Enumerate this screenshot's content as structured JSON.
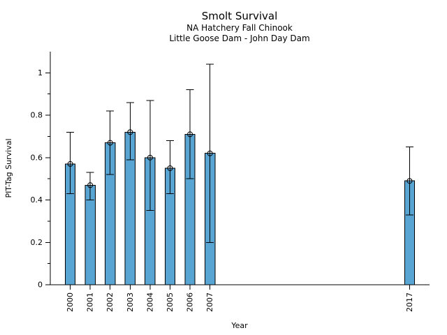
{
  "figure": {
    "background": "#ffffff",
    "text_color": "#000000"
  },
  "chart_data": {
    "type": "bar",
    "title": "Smolt Survival",
    "subtitle1": "NA Hatchery Fall Chinook",
    "subtitle2": "Little Goose Dam - John Day Dam",
    "xlabel": "Year",
    "ylabel": "PIT-Tag Survival",
    "categories": [
      "2000",
      "2001",
      "2002",
      "2003",
      "2004",
      "2005",
      "2006",
      "2007",
      "2017"
    ],
    "x": [
      2000,
      2001,
      2002,
      2003,
      2004,
      2005,
      2006,
      2007,
      2017
    ],
    "values": [
      0.57,
      0.47,
      0.67,
      0.72,
      0.6,
      0.55,
      0.71,
      0.62,
      0.49
    ],
    "error_low": [
      0.43,
      0.4,
      0.52,
      0.59,
      0.35,
      0.43,
      0.5,
      0.2,
      0.33
    ],
    "error_high": [
      0.72,
      0.53,
      0.82,
      0.86,
      0.87,
      0.68,
      0.92,
      1.04,
      0.65
    ],
    "xlim": [
      1999,
      2018
    ],
    "ylim": [
      0,
      1.1
    ],
    "y_major_ticks": [
      0,
      0.2,
      0.4,
      0.6,
      0.8,
      1
    ],
    "y_major_tick_labels": [
      "0",
      "0.2",
      "0.4",
      "0.6",
      "0.8",
      "1"
    ],
    "y_minor_ticks": [
      0.1,
      0.3,
      0.5,
      0.7,
      0.9
    ],
    "bar_color": "#58A5D3",
    "bar_edge_color": "#000000",
    "error_color": "#000000",
    "marker": "open-circle",
    "grid": false,
    "legend": "none"
  }
}
